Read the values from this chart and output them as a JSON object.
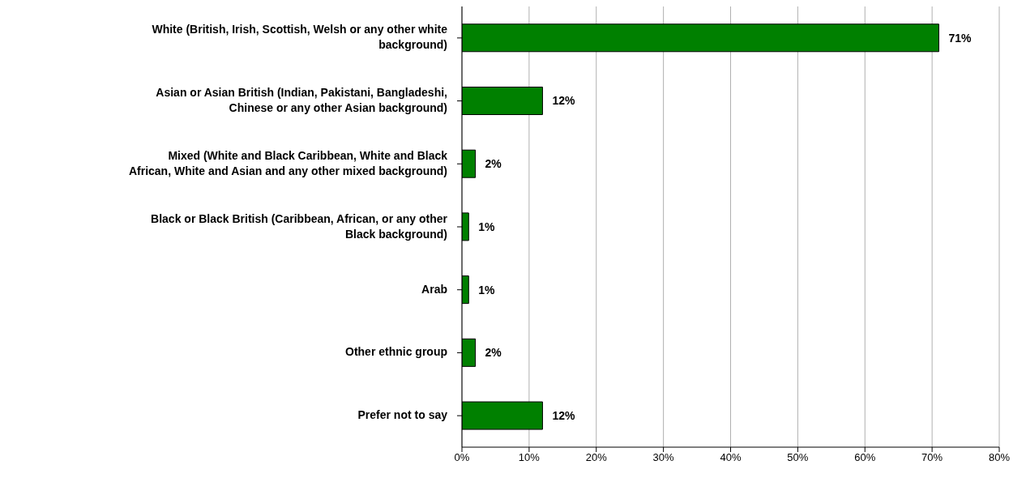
{
  "chart_data": {
    "type": "bar",
    "orientation": "horizontal",
    "categories": [
      "White (British, Irish, Scottish, Welsh or any other white background)",
      "Asian or Asian British (Indian, Pakistani, Bangladeshi, Chinese or any other Asian background)",
      "Mixed (White and Black Caribbean, White and Black African, White and Asian and any other mixed background)",
      "Black or Black British (Caribbean, African, or any other Black background)",
      "Arab",
      "Other ethnic group",
      "Prefer not to say"
    ],
    "values": [
      71,
      12,
      2,
      1,
      1,
      2,
      12
    ],
    "value_labels": [
      "71%",
      "12%",
      "2%",
      "1%",
      "1%",
      "2%",
      "12%"
    ],
    "color": "#008000",
    "xlim": [
      0,
      80
    ],
    "xticks": [
      {
        "value": 0,
        "label": "0%"
      },
      {
        "value": 10,
        "label": "10%"
      },
      {
        "value": 20,
        "label": "20%"
      },
      {
        "value": 30,
        "label": "30%"
      },
      {
        "value": 40,
        "label": "40%"
      },
      {
        "value": 50,
        "label": "50%"
      },
      {
        "value": 60,
        "label": "60%"
      },
      {
        "value": 70,
        "label": "70%"
      },
      {
        "value": 80,
        "label": "80%"
      }
    ],
    "grid": "x",
    "legend": false
  }
}
